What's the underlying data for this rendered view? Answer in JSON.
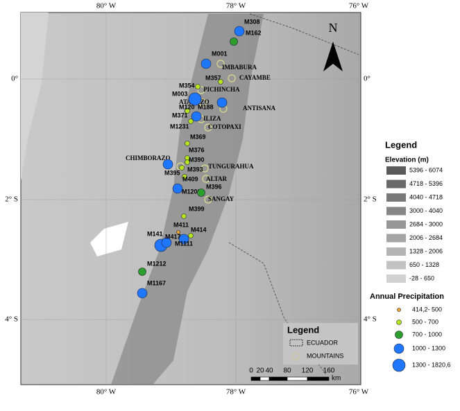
{
  "map": {
    "lon_labels": [
      "80° W",
      "78° W",
      "76° W"
    ],
    "lat_labels": [
      "0°",
      "2° S",
      "4° S"
    ],
    "north": "N",
    "stations": [
      {
        "label": "M308",
        "class": 3
      },
      {
        "label": "M162",
        "class": 2
      },
      {
        "label": "M001",
        "class": 3
      },
      {
        "label": "M357",
        "class": 1
      },
      {
        "label": "M354",
        "class": 1
      },
      {
        "label": "M003",
        "class": 4
      },
      {
        "label": "M120",
        "class": 1
      },
      {
        "label": "M188",
        "class": 3
      },
      {
        "label": "M371",
        "class": 3
      },
      {
        "label": "M1231",
        "class": 1
      },
      {
        "label": "M369",
        "class": 1
      },
      {
        "label": "M376",
        "class": 1
      },
      {
        "label": "M390",
        "class": 1
      },
      {
        "label": "M393",
        "class": 1
      },
      {
        "label": "M395",
        "class": 3
      },
      {
        "label": "M409",
        "class": 1
      },
      {
        "label": "M1203",
        "class": 3
      },
      {
        "label": "M396",
        "class": 2
      },
      {
        "label": "M399",
        "class": 1
      },
      {
        "label": "M411",
        "class": 0
      },
      {
        "label": "M414",
        "class": 1
      },
      {
        "label": "M141",
        "class": 4
      },
      {
        "label": "M417",
        "class": 3
      },
      {
        "label": "M1111",
        "class": 3
      },
      {
        "label": "M1212",
        "class": 2
      },
      {
        "label": "M1167",
        "class": 3
      }
    ],
    "mountains": [
      "IMBABURA",
      "CAYAMBE",
      "PICHINCHA",
      "ATACAZO",
      "ANTISANA",
      "ILIZA",
      "COTOPAXI",
      "CHIMBORAZO",
      "TUNGURAHUA",
      "ALTAR",
      "SANGAY"
    ],
    "inner_legend": {
      "title": "Legend",
      "items": [
        "ECUADOR",
        "MOUNTAINS"
      ]
    },
    "scale": {
      "ticks": [
        "0",
        "20",
        "40",
        "80",
        "120",
        "160"
      ],
      "unit": "km"
    },
    "legend": {
      "title": "Legend",
      "elevation": {
        "title": "Elevation (m)",
        "classes": [
          "5396 - 6074",
          "4718 - 5396",
          "4040 - 4718",
          "3000 - 4040",
          "2684 - 3000",
          "2006 - 2684",
          "1328 - 2006",
          "650 - 1328",
          "-28 - 650"
        ]
      },
      "precipitation": {
        "title": "Annual Precipitation",
        "classes": [
          "414,2- 500",
          "500 - 700",
          "700 - 1000",
          "1000 - 1300",
          "1300 - 1820,6"
        ]
      }
    }
  }
}
